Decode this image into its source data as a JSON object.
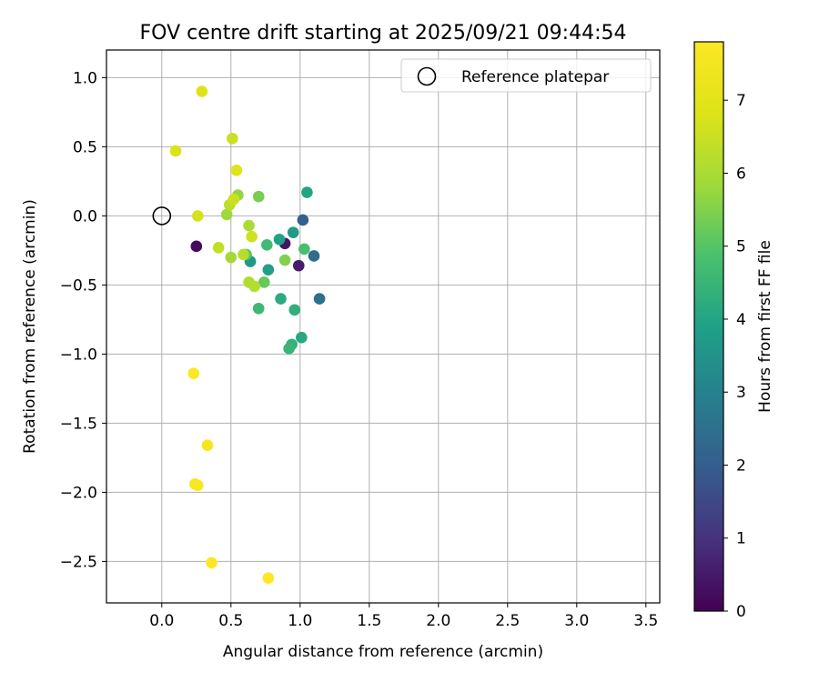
{
  "chart_data": {
    "type": "scatter",
    "title": "FOV centre drift starting at 2025/09/21 09:44:54",
    "xlabel": "Angular distance from reference (arcmin)",
    "ylabel": "Rotation from reference (arcmin)",
    "xlim": [
      -0.4,
      3.6
    ],
    "ylim": [
      -2.8,
      1.2
    ],
    "xticks": [
      0.0,
      0.5,
      1.0,
      1.5,
      2.0,
      2.5,
      3.0,
      3.5
    ],
    "xtick_labels": [
      "0.0",
      "0.5",
      "1.0",
      "1.5",
      "2.0",
      "2.5",
      "3.0",
      "3.5"
    ],
    "yticks": [
      1.0,
      0.5,
      0.0,
      -0.5,
      -1.0,
      -1.5,
      -2.0,
      -2.5
    ],
    "ytick_labels": [
      "1.0",
      "0.5",
      "0.0",
      "−0.5",
      "−1.0",
      "−1.5",
      "−2.0",
      "−2.5"
    ],
    "grid": true,
    "colormap": "viridis",
    "colorbar": {
      "label": "Hours from first FF file",
      "range": [
        0,
        7.8
      ],
      "ticks": [
        0,
        1,
        2,
        3,
        4,
        5,
        6,
        7
      ],
      "tick_labels": [
        "0",
        "1",
        "2",
        "3",
        "4",
        "5",
        "6",
        "7"
      ]
    },
    "legend": {
      "label": "Reference platepar",
      "placement": "top-right"
    },
    "reference_point": {
      "x": 0.0,
      "y": 0.0
    },
    "points": [
      {
        "x": 0.25,
        "y": -0.22,
        "h": 0.2
      },
      {
        "x": 0.89,
        "y": -0.2,
        "h": 0.4
      },
      {
        "x": 0.99,
        "y": -0.36,
        "h": 0.6
      },
      {
        "x": 1.02,
        "y": -0.03,
        "h": 2.1
      },
      {
        "x": 1.1,
        "y": -0.29,
        "h": 2.4
      },
      {
        "x": 1.14,
        "y": -0.6,
        "h": 2.5
      },
      {
        "x": 0.64,
        "y": -0.33,
        "h": 3.6
      },
      {
        "x": 0.95,
        "y": -0.12,
        "h": 3.7
      },
      {
        "x": 0.77,
        "y": -0.39,
        "h": 3.8
      },
      {
        "x": 0.85,
        "y": -0.17,
        "h": 3.9
      },
      {
        "x": 1.05,
        "y": 0.17,
        "h": 4.0
      },
      {
        "x": 1.01,
        "y": -0.88,
        "h": 4.1
      },
      {
        "x": 0.86,
        "y": -0.6,
        "h": 4.2
      },
      {
        "x": 0.96,
        "y": -0.68,
        "h": 4.3
      },
      {
        "x": 0.94,
        "y": -0.93,
        "h": 4.4
      },
      {
        "x": 0.92,
        "y": -0.96,
        "h": 4.5
      },
      {
        "x": 0.7,
        "y": -0.67,
        "h": 4.6
      },
      {
        "x": 0.76,
        "y": -0.21,
        "h": 4.7
      },
      {
        "x": 1.03,
        "y": -0.24,
        "h": 4.8
      },
      {
        "x": 0.61,
        "y": -0.28,
        "h": 5.0
      },
      {
        "x": 0.74,
        "y": -0.48,
        "h": 5.2
      },
      {
        "x": 0.7,
        "y": 0.14,
        "h": 5.4
      },
      {
        "x": 0.89,
        "y": -0.32,
        "h": 5.5
      },
      {
        "x": 0.55,
        "y": 0.15,
        "h": 5.7
      },
      {
        "x": 0.47,
        "y": 0.01,
        "h": 5.8
      },
      {
        "x": 0.5,
        "y": -0.3,
        "h": 5.9
      },
      {
        "x": 0.63,
        "y": -0.07,
        "h": 6.0
      },
      {
        "x": 0.63,
        "y": -0.48,
        "h": 6.1
      },
      {
        "x": 0.67,
        "y": -0.51,
        "h": 6.15
      },
      {
        "x": 0.59,
        "y": -0.28,
        "h": 6.2
      },
      {
        "x": 0.49,
        "y": 0.08,
        "h": 6.3
      },
      {
        "x": 0.41,
        "y": -0.23,
        "h": 6.4
      },
      {
        "x": 0.51,
        "y": 0.56,
        "h": 6.5
      },
      {
        "x": 0.52,
        "y": 0.12,
        "h": 6.55
      },
      {
        "x": 0.65,
        "y": -0.15,
        "h": 6.6
      },
      {
        "x": 0.26,
        "y": 0.0,
        "h": 6.7
      },
      {
        "x": 0.1,
        "y": 0.47,
        "h": 6.8
      },
      {
        "x": 0.29,
        "y": 0.9,
        "h": 6.85
      },
      {
        "x": 0.54,
        "y": 0.33,
        "h": 6.9
      },
      {
        "x": 0.33,
        "y": -1.66,
        "h": 7.6
      },
      {
        "x": 0.24,
        "y": -1.94,
        "h": 7.65
      },
      {
        "x": 0.26,
        "y": -1.95,
        "h": 7.7
      },
      {
        "x": 0.23,
        "y": -1.14,
        "h": 7.75
      },
      {
        "x": 0.36,
        "y": -2.51,
        "h": 7.8
      },
      {
        "x": 0.77,
        "y": -2.62,
        "h": 7.8
      }
    ]
  }
}
